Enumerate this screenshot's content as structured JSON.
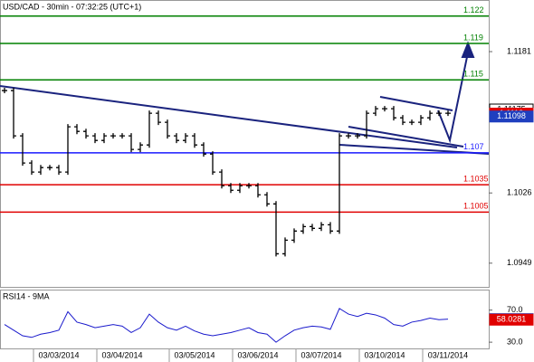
{
  "chart_data": [
    {
      "type": "ohlc",
      "title": "USD/CAD - 30min - 07:32:25 (UTC+1)",
      "color": "#000000",
      "categories": [
        null,
        null,
        null,
        null,
        null,
        null,
        "03/03/2014",
        null,
        null,
        null,
        null,
        null,
        null,
        "03/04/2014",
        null,
        null,
        null,
        null,
        null,
        null,
        null,
        "03/05/2014",
        null,
        null,
        null,
        null,
        null,
        null,
        "03/06/2014",
        null,
        null,
        null,
        null,
        null,
        null,
        "03/07/2014",
        null,
        null,
        null,
        null,
        null,
        null,
        "03/10/2014",
        null,
        null,
        null,
        null,
        null,
        null,
        "03/11/2014"
      ],
      "values": [
        1.11383,
        1.10886,
        1.10588,
        1.10489,
        1.10538,
        1.10538,
        1.10489,
        1.10985,
        1.10935,
        1.10886,
        1.10836,
        1.10886,
        1.10886,
        1.10886,
        1.10737,
        1.10786,
        1.11134,
        1.11035,
        1.10886,
        1.10836,
        1.10886,
        1.10786,
        1.10687,
        1.10489,
        1.10339,
        1.10289,
        1.10339,
        1.10339,
        1.1024,
        1.1014,
        1.09593,
        1.09742,
        1.09842,
        1.09891,
        1.09872,
        1.09911,
        1.09842,
        1.10886,
        1.10886,
        1.10886,
        1.11134,
        1.11184,
        1.11184,
        1.11084,
        1.11035,
        1.11035,
        1.11084,
        1.11134,
        1.11134,
        1.11134
      ],
      "ylim": [
        1.0922,
        1.12376
      ],
      "yticks": [
        1.1181,
        1.1026,
        1.0949
      ],
      "levels": [
        {
          "value": 1.122,
          "color": "#008000"
        },
        {
          "value": 1.119,
          "color": "#008000"
        },
        {
          "value": 1.115,
          "color": "#008000"
        },
        {
          "value": 1.107,
          "color": "#1a1aff"
        },
        {
          "value": 1.1035,
          "color": "#e00000"
        },
        {
          "value": 1.1005,
          "color": "#e00000"
        }
      ],
      "markers": [
        {
          "value": 1.11175,
          "color": "#ffffff"
        },
        {
          "value": 1.1113,
          "color": "#e00000"
        },
        {
          "value": 1.11098,
          "color": "#1f3fbf"
        }
      ]
    },
    {
      "type": "line",
      "title": "RSI14 - 9MA",
      "color": "#1a1acc",
      "values": [
        52,
        45,
        38,
        36,
        40,
        42,
        45,
        68,
        55,
        52,
        48,
        50,
        52,
        50,
        42,
        48,
        65,
        55,
        48,
        45,
        50,
        44,
        40,
        38,
        40,
        42,
        45,
        48,
        42,
        40,
        30,
        38,
        45,
        48,
        50,
        49,
        46,
        72,
        65,
        62,
        66,
        64,
        60,
        52,
        50,
        55,
        57,
        60,
        58,
        58.7
      ],
      "ylim": [
        21.1,
        94.4
      ],
      "yticks": [
        {
          "value": 70,
          "label": "70.0"
        },
        {
          "value": 30,
          "label": "30.0"
        }
      ],
      "markers": [
        {
          "value": 58.704,
          "color": "#1f3fbf"
        },
        {
          "value": 58.0281,
          "color": "#e00000"
        }
      ]
    }
  ]
}
